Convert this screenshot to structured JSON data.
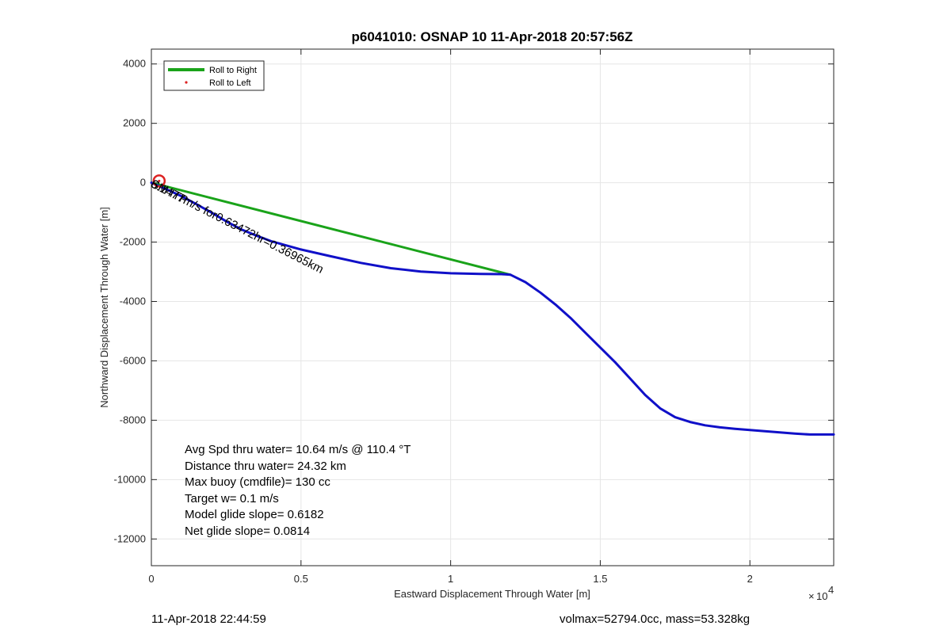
{
  "chart_data": {
    "type": "line",
    "title": "p6041010: OSNAP 10 11-Apr-2018 20:57:56Z",
    "xlabel": "Eastward Displacement Through Water [m]",
    "ylabel": "Northward Displacement Through Water [m]",
    "x_exponent": "10",
    "x_exponent_power": "4",
    "xlim": [
      0,
      22800
    ],
    "ylim": [
      -12900,
      4500
    ],
    "x_ticks": [
      0,
      5000,
      10000,
      15000,
      20000
    ],
    "x_tick_labels": [
      "0",
      "0.5",
      "1",
      "1.5",
      "2"
    ],
    "y_ticks": [
      4000,
      2000,
      0,
      -2000,
      -4000,
      -6000,
      -8000,
      -10000,
      -12000
    ],
    "y_tick_labels": [
      "4000",
      "2000",
      "0",
      "-2000",
      "-4000",
      "-6000",
      "-8000",
      "-10000",
      "-12000"
    ],
    "grid": true,
    "legend_position": "top-left",
    "legend": [
      "Roll to Right",
      "Roll to Left"
    ],
    "series": [
      {
        "name": "Roll to Right",
        "color": "#1aa31a",
        "x": [
          0,
          12000
        ],
        "y": [
          0,
          -3100
        ]
      },
      {
        "color": "#1010c8",
        "x": [
          0,
          500,
          1000,
          1500,
          2000,
          2500,
          3000,
          3500,
          4000,
          5000,
          6000,
          7000,
          8000,
          9000,
          10000,
          11000,
          11700,
          12000,
          12500,
          13000,
          13500,
          14000,
          14500,
          15000,
          15500,
          16000,
          16500,
          17000,
          17500,
          18000,
          18500,
          19000,
          19500,
          20000,
          20500,
          21000,
          21500,
          22000,
          22800
        ],
        "y": [
          0,
          -220,
          -450,
          -720,
          -1000,
          -1300,
          -1570,
          -1780,
          -1970,
          -2250,
          -2480,
          -2700,
          -2880,
          -2990,
          -3050,
          -3070,
          -3080,
          -3100,
          -3350,
          -3700,
          -4100,
          -4550,
          -5050,
          -5550,
          -6050,
          -6600,
          -7150,
          -7600,
          -7900,
          -8060,
          -8170,
          -8240,
          -8290,
          -8330,
          -8370,
          -8410,
          -8450,
          -8480,
          -8480
        ]
      },
      {
        "name": "Roll to Left",
        "color": "#dd2222",
        "x": [
          260
        ],
        "y": [
          60
        ]
      }
    ],
    "annotations": [
      {
        "text": "SM ITP",
        "x": 0,
        "y": -30,
        "angle": 27
      },
      {
        "text": "6.1477m/s for0.63472hr=0.36965km",
        "x": 0,
        "y": -30,
        "angle": 27
      }
    ]
  },
  "stats": {
    "avg_speed": "Avg Spd thru water= 10.64 m/s @ 110.4 °T",
    "distance": "Distance thru water= 24.32 km",
    "max_buoy": "Max buoy (cmdfile)= 130 cc",
    "target_w": "Target w= 0.1 m/s",
    "model_glide": "Model glide slope= 0.6182",
    "net_glide": "Net glide slope= 0.0814"
  },
  "footer": {
    "timestamp": "11-Apr-2018 22:44:59",
    "vol_mass": "volmax=52794.0cc, mass=53.328kg"
  }
}
